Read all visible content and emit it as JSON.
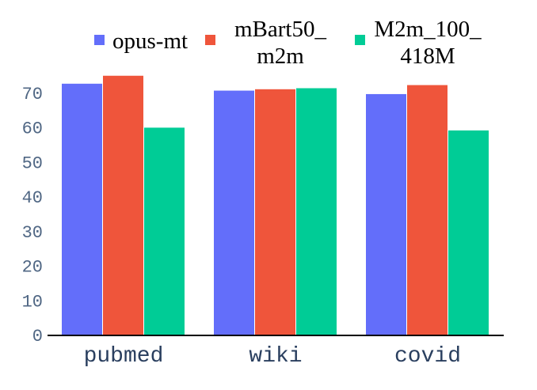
{
  "chart_data": {
    "type": "bar",
    "categories": [
      "pubmed",
      "wiki",
      "covid"
    ],
    "series": [
      {
        "name": "opus-mt",
        "name_lines": [
          "opus-mt"
        ],
        "color": "#636efa",
        "values": [
          72.5,
          70.5,
          69.5
        ]
      },
      {
        "name": "mBart50_m2m",
        "name_lines": [
          "mBart50_",
          "m2m"
        ],
        "color": "#ef553b",
        "values": [
          74.8,
          70.9,
          72.1
        ]
      },
      {
        "name": "M2m_100_418M",
        "name_lines": [
          "M2m_100_",
          "418M"
        ],
        "color": "#00cc96",
        "values": [
          59.8,
          71.2,
          59.0
        ]
      }
    ],
    "ylim": [
      0,
      80
    ],
    "yticks": [
      0,
      10,
      20,
      30,
      40,
      50,
      60,
      70
    ],
    "grid": false,
    "legend_position": "top",
    "title": "",
    "xlabel": "",
    "ylabel": ""
  }
}
